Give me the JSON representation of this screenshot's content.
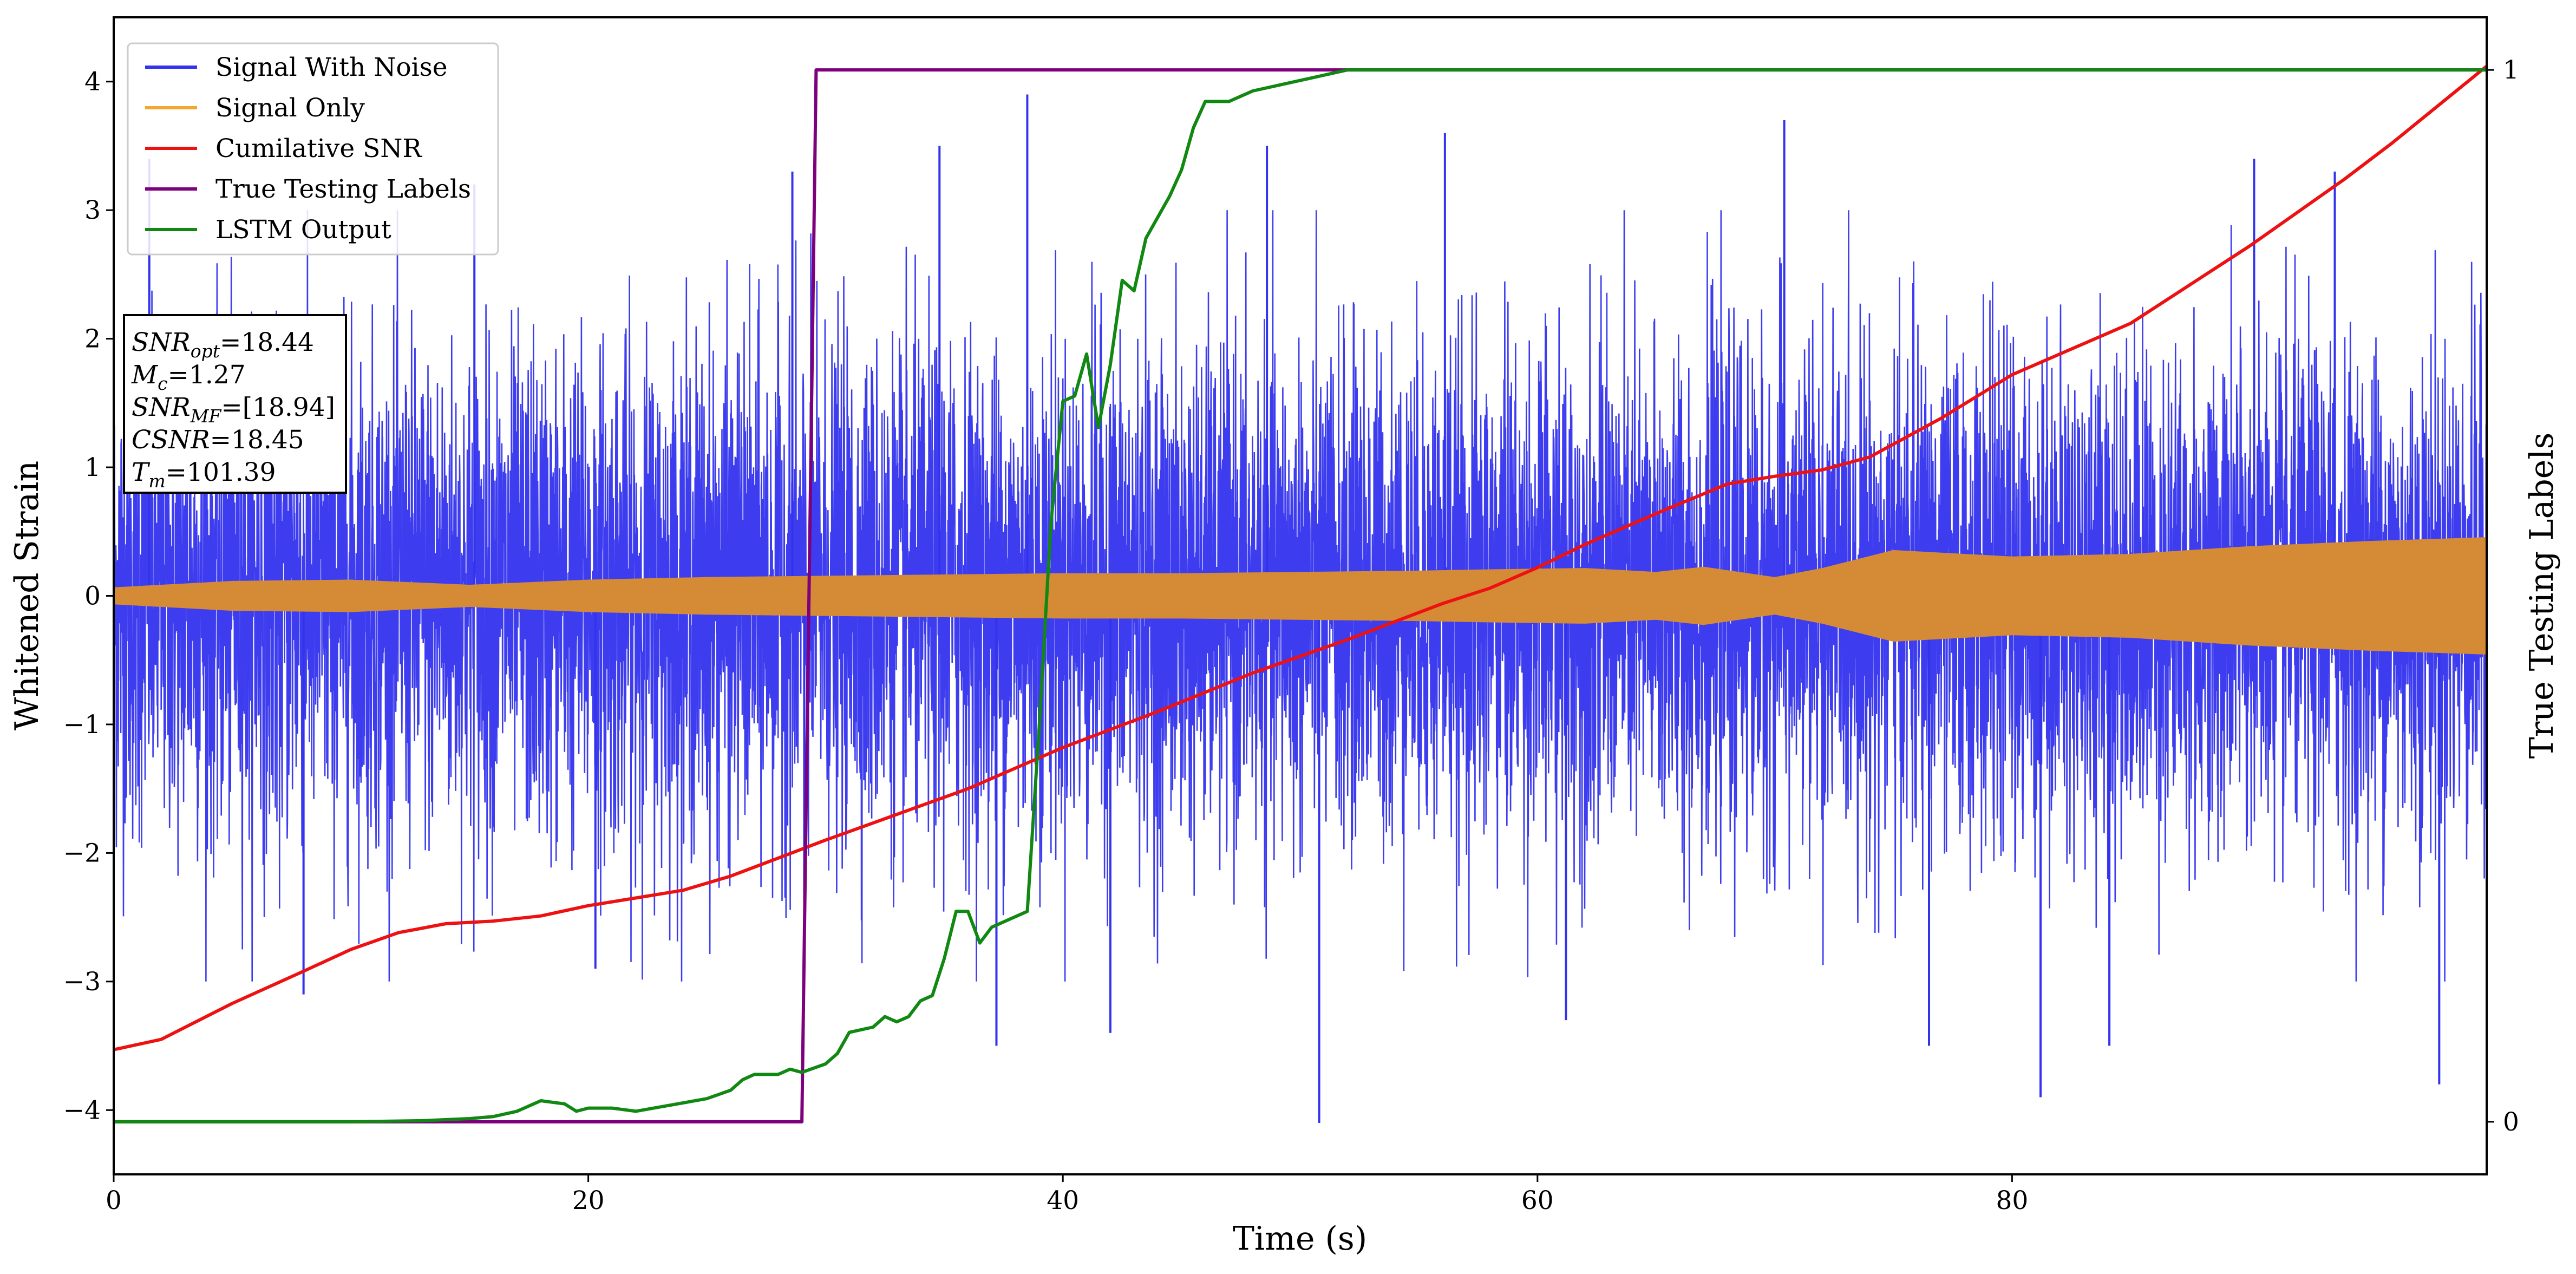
{
  "chart_data": {
    "type": "line",
    "title": "",
    "xlabel": "Time (s)",
    "ylabel": "Whitened Strain",
    "ylabel_right": "True Testing Labels",
    "xlim": [
      0,
      100
    ],
    "ylim": [
      -4.5,
      4.5
    ],
    "ylim_right": [
      -0.05,
      1.05
    ],
    "x_ticks": [
      0,
      20,
      40,
      60,
      80
    ],
    "x_tick_labels": [
      "0",
      "20",
      "40",
      "60",
      "80"
    ],
    "y_ticks": [
      -4,
      -3,
      -2,
      -1,
      0,
      1,
      2,
      3,
      4
    ],
    "y_tick_labels": [
      "−4",
      "−3",
      "−2",
      "−1",
      "0",
      "1",
      "2",
      "3",
      "4"
    ],
    "y2_ticks": [
      0,
      1
    ],
    "y2_tick_labels": [
      "0",
      "1"
    ],
    "grid": false,
    "legend_position": "top-left",
    "series": [
      {
        "name": "Signal With Noise",
        "color": "#3333ee",
        "axis": "left",
        "description": "white noise about 0, std ~1",
        "envelope_typical": [
          -2.3,
          2.3
        ],
        "x_min": 0,
        "x_max": 100,
        "spikes": [
          [
            1.5,
            3.4
          ],
          [
            8.0,
            -3.1
          ],
          [
            15.2,
            3.2
          ],
          [
            20.3,
            -2.9
          ],
          [
            28.6,
            3.3
          ],
          [
            29.1,
            -2.9
          ],
          [
            34.8,
            3.5
          ],
          [
            38.5,
            3.9
          ],
          [
            37.2,
            -3.5
          ],
          [
            42.0,
            -3.4
          ],
          [
            48.6,
            3.5
          ],
          [
            50.8,
            -4.1
          ],
          [
            56.1,
            3.6
          ],
          [
            61.2,
            -3.3
          ],
          [
            70.4,
            3.7
          ],
          [
            76.5,
            -3.5
          ],
          [
            81.2,
            -3.9
          ],
          [
            84.1,
            -3.5
          ],
          [
            90.2,
            3.4
          ],
          [
            93.6,
            3.3
          ],
          [
            98.0,
            -3.8
          ]
        ]
      },
      {
        "name": "Signal Only",
        "color": "#f0a830",
        "fill_color": "#d58a36",
        "axis": "left",
        "description": "chirp envelope growing slowly",
        "envelope": [
          [
            0,
            0.06
          ],
          [
            5,
            0.11
          ],
          [
            10,
            0.12
          ],
          [
            15,
            0.08
          ],
          [
            20,
            0.12
          ],
          [
            25,
            0.14
          ],
          [
            30,
            0.15
          ],
          [
            35,
            0.16
          ],
          [
            40,
            0.17
          ],
          [
            45,
            0.17
          ],
          [
            50,
            0.18
          ],
          [
            55,
            0.19
          ],
          [
            58,
            0.2
          ],
          [
            62,
            0.21
          ],
          [
            65,
            0.18
          ],
          [
            67,
            0.22
          ],
          [
            70,
            0.14
          ],
          [
            72,
            0.21
          ],
          [
            75,
            0.35
          ],
          [
            80,
            0.3
          ],
          [
            85,
            0.32
          ],
          [
            90,
            0.38
          ],
          [
            95,
            0.42
          ],
          [
            100,
            0.45
          ]
        ]
      },
      {
        "name": "Cumilative SNR",
        "color": "#ee1111",
        "axis": "left",
        "points": [
          [
            0,
            -3.53
          ],
          [
            2,
            -3.45
          ],
          [
            5,
            -3.17
          ],
          [
            8,
            -2.92
          ],
          [
            10,
            -2.75
          ],
          [
            12,
            -2.62
          ],
          [
            14,
            -2.55
          ],
          [
            16,
            -2.53
          ],
          [
            18,
            -2.49
          ],
          [
            20,
            -2.41
          ],
          [
            22,
            -2.35
          ],
          [
            24,
            -2.29
          ],
          [
            26,
            -2.18
          ],
          [
            28,
            -2.04
          ],
          [
            30,
            -1.9
          ],
          [
            33,
            -1.7
          ],
          [
            36,
            -1.5
          ],
          [
            40,
            -1.18
          ],
          [
            44,
            -0.9
          ],
          [
            48,
            -0.6
          ],
          [
            52,
            -0.34
          ],
          [
            56,
            -0.06
          ],
          [
            58,
            0.06
          ],
          [
            60,
            0.22
          ],
          [
            62,
            0.4
          ],
          [
            65,
            0.64
          ],
          [
            68,
            0.87
          ],
          [
            70,
            0.93
          ],
          [
            72,
            0.98
          ],
          [
            74,
            1.08
          ],
          [
            77,
            1.38
          ],
          [
            80,
            1.72
          ],
          [
            83,
            1.96
          ],
          [
            85,
            2.12
          ],
          [
            88,
            2.48
          ],
          [
            90,
            2.72
          ],
          [
            92,
            2.98
          ],
          [
            94,
            3.24
          ],
          [
            96,
            3.52
          ],
          [
            98,
            3.82
          ],
          [
            100,
            4.12
          ]
        ]
      },
      {
        "name": "True Testing Labels",
        "color": "#7d007d",
        "axis": "right",
        "points": [
          [
            0,
            0
          ],
          [
            29.0,
            0
          ],
          [
            29.6,
            1
          ],
          [
            100,
            1
          ]
        ]
      },
      {
        "name": "LSTM Output",
        "color": "#118811",
        "axis": "right",
        "points": [
          [
            0,
            0
          ],
          [
            10,
            0
          ],
          [
            13,
            0.001
          ],
          [
            15,
            0.003
          ],
          [
            16,
            0.005
          ],
          [
            17,
            0.01
          ],
          [
            18,
            0.02
          ],
          [
            19,
            0.017
          ],
          [
            19.5,
            0.01
          ],
          [
            20,
            0.013
          ],
          [
            21,
            0.013
          ],
          [
            22,
            0.01
          ],
          [
            22.5,
            0.012
          ],
          [
            23,
            0.014
          ],
          [
            24,
            0.018
          ],
          [
            25,
            0.022
          ],
          [
            26,
            0.03
          ],
          [
            26.5,
            0.04
          ],
          [
            27,
            0.045
          ],
          [
            28,
            0.045
          ],
          [
            28.5,
            0.05
          ],
          [
            29,
            0.047
          ],
          [
            30,
            0.055
          ],
          [
            30.5,
            0.065
          ],
          [
            31,
            0.085
          ],
          [
            32,
            0.09
          ],
          [
            32.5,
            0.1
          ],
          [
            33,
            0.095
          ],
          [
            33.5,
            0.1
          ],
          [
            34,
            0.115
          ],
          [
            34.5,
            0.12
          ],
          [
            35,
            0.155
          ],
          [
            35.5,
            0.2
          ],
          [
            36,
            0.2
          ],
          [
            36.5,
            0.17
          ],
          [
            37,
            0.185
          ],
          [
            37.5,
            0.19
          ],
          [
            38,
            0.195
          ],
          [
            38.5,
            0.2
          ],
          [
            39,
            0.375
          ],
          [
            39.5,
            0.57
          ],
          [
            40,
            0.685
          ],
          [
            40.5,
            0.69
          ],
          [
            41,
            0.73
          ],
          [
            41.5,
            0.66
          ],
          [
            42,
            0.72
          ],
          [
            42.5,
            0.8
          ],
          [
            43,
            0.79
          ],
          [
            43.5,
            0.84
          ],
          [
            44,
            0.86
          ],
          [
            44.5,
            0.88
          ],
          [
            45,
            0.905
          ],
          [
            45.5,
            0.945
          ],
          [
            46,
            0.97
          ],
          [
            47,
            0.97
          ],
          [
            48,
            0.98
          ],
          [
            50,
            0.99
          ],
          [
            52,
            1.0
          ],
          [
            60,
            1.0
          ],
          [
            100,
            1.0
          ]
        ]
      }
    ],
    "annotation": {
      "lines": [
        {
          "sym": "SNR",
          "sub": "opt",
          "value": "=18.44"
        },
        {
          "sym": "M",
          "sub": "c",
          "value": "=1.27"
        },
        {
          "sym": "SNR",
          "sub": "MF",
          "value": "=[18.94]"
        },
        {
          "sym": "CSNR",
          "sub": "",
          "value": "=18.45"
        },
        {
          "sym": "T",
          "sub": "m",
          "value": "=101.39"
        }
      ]
    }
  }
}
